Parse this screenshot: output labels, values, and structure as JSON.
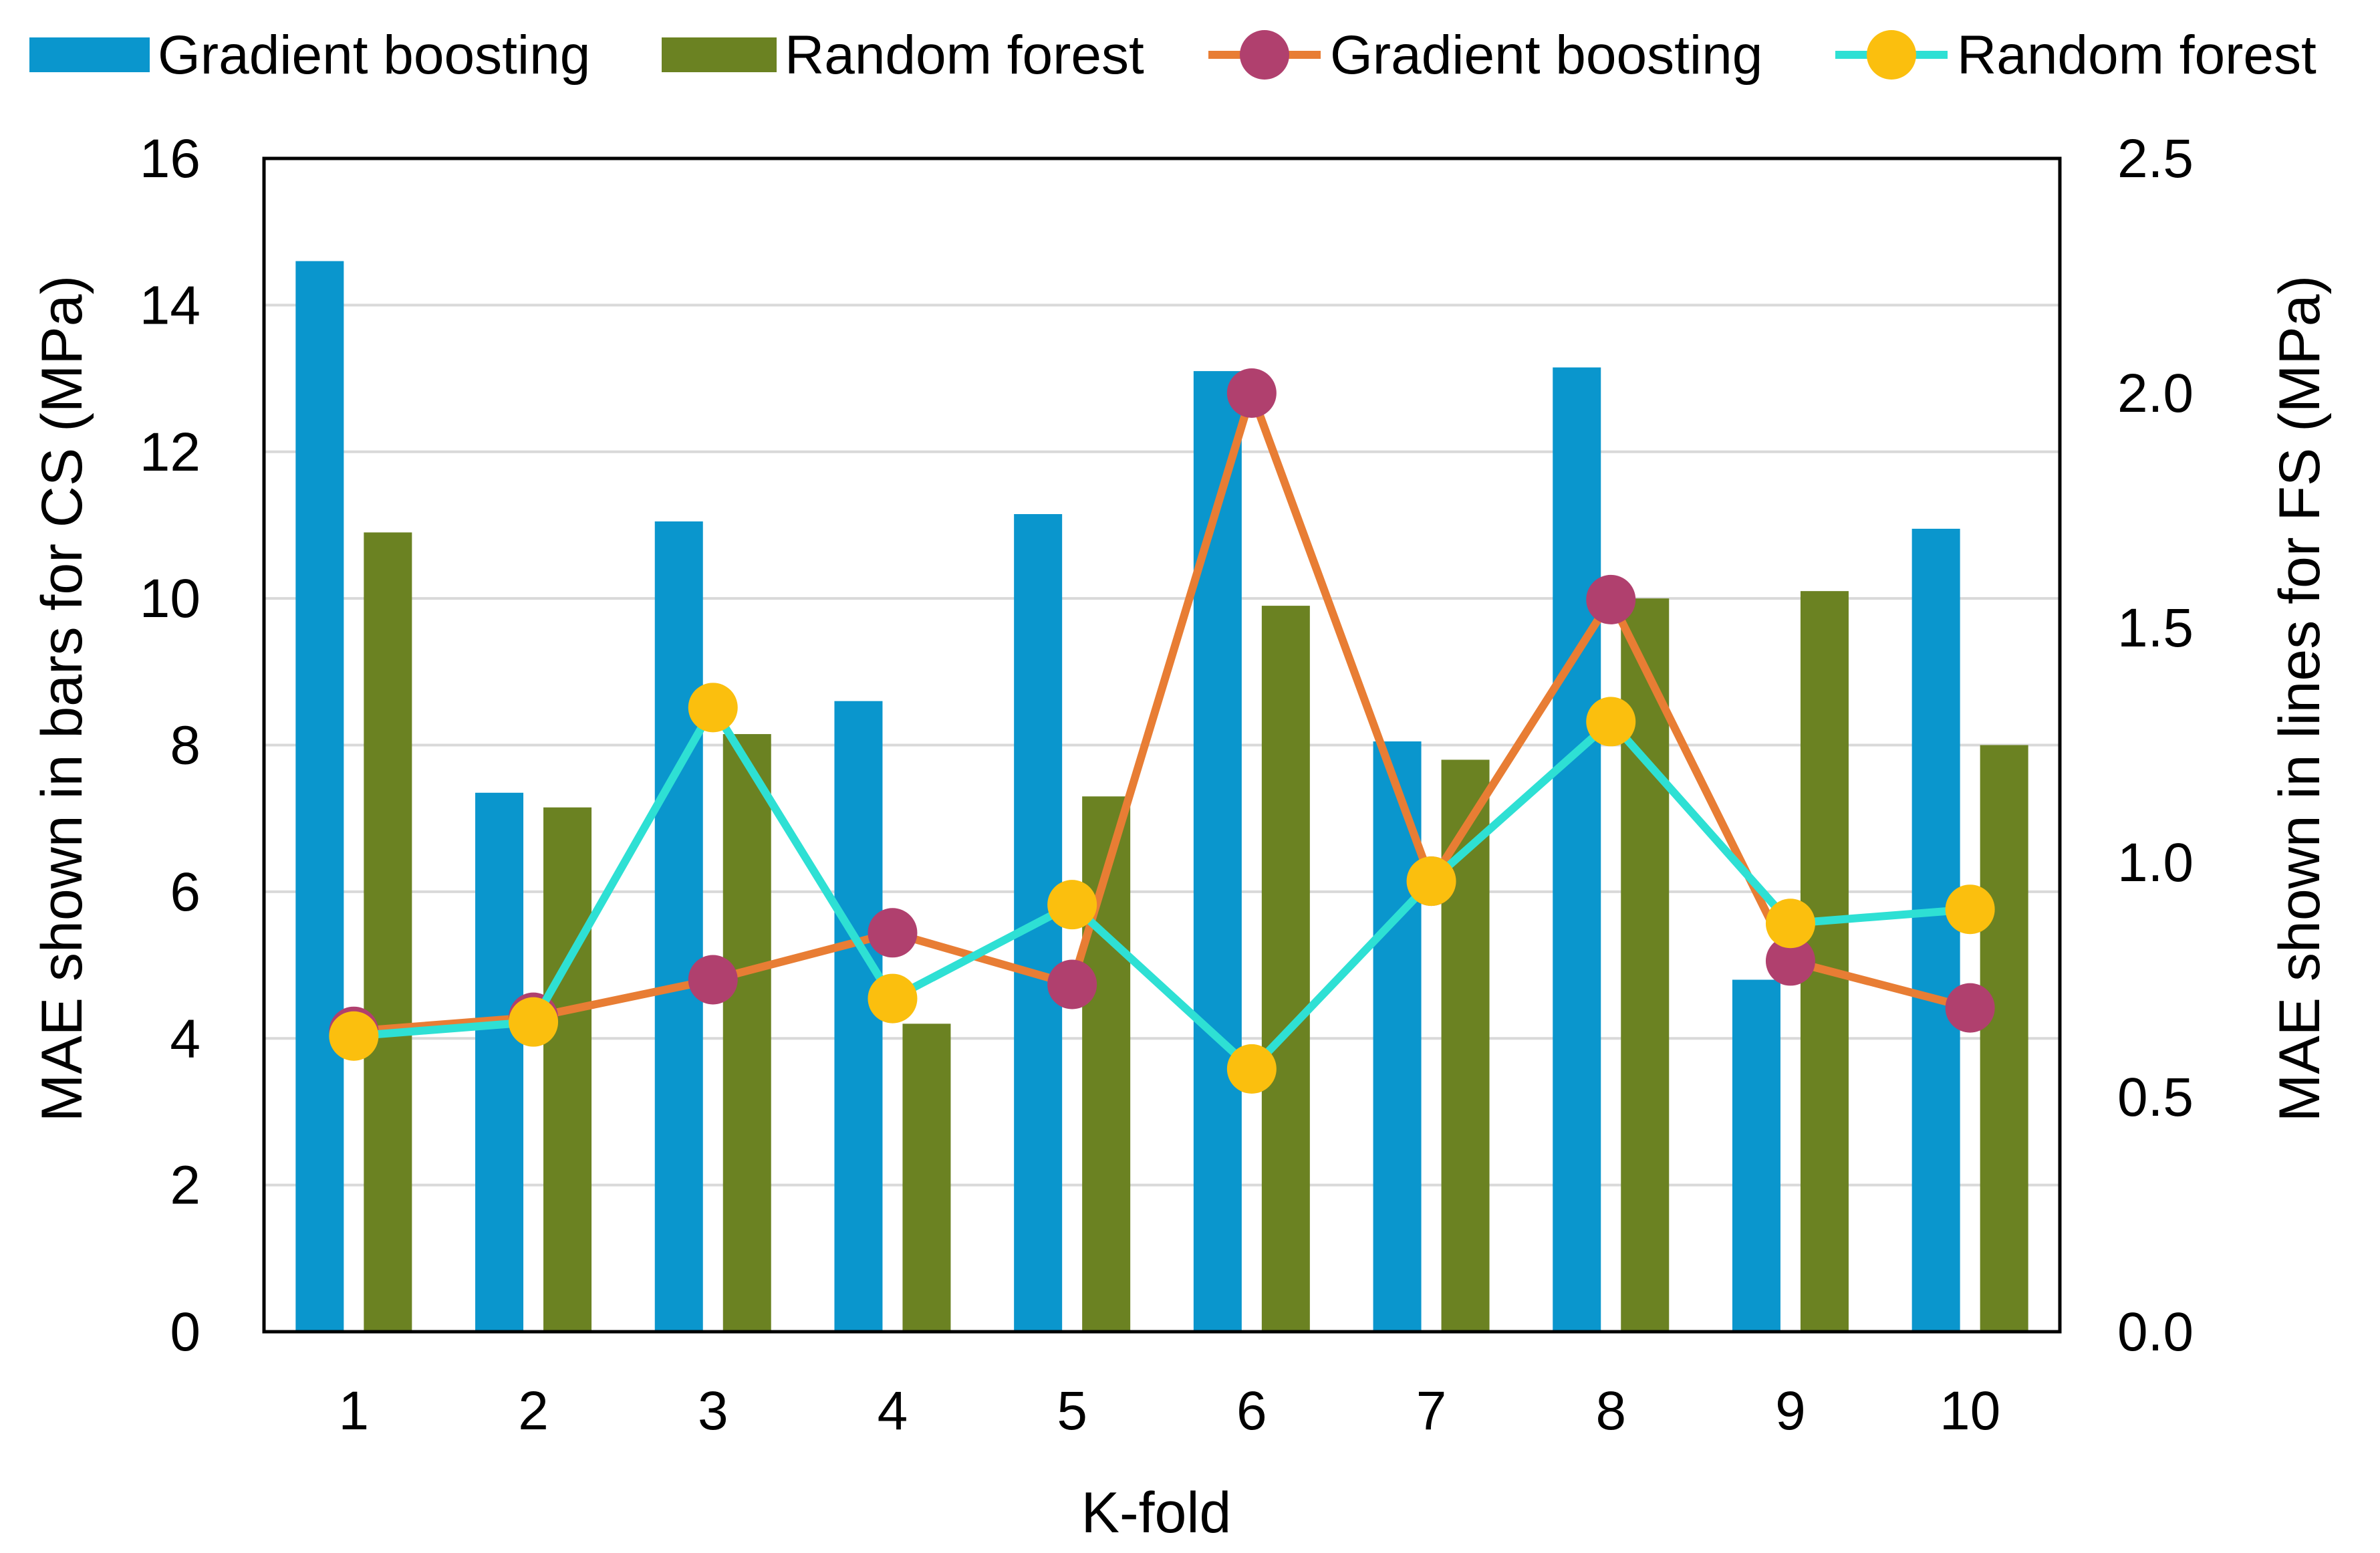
{
  "chart_data": {
    "type": "bar",
    "categories": [
      "1",
      "2",
      "3",
      "4",
      "5",
      "6",
      "7",
      "8",
      "9",
      "10"
    ],
    "xlabel": "K-fold",
    "ylabel_left": "MAE shown in bars for CS (MPa)",
    "ylabel_right": "MAE shown in lines for FS (MPa)",
    "ylim_left": [
      0,
      16
    ],
    "ylim_right": [
      0,
      2.5
    ],
    "left_ticks": [
      "0",
      "2",
      "4",
      "6",
      "8",
      "10",
      "12",
      "14",
      "16"
    ],
    "right_ticks": [
      "0.0",
      "0.5",
      "1.0",
      "1.5",
      "2.0",
      "2.5"
    ],
    "grid": true,
    "legend_position": "top",
    "bar_series": [
      {
        "name": "Gradient boosting",
        "color": "#0A96CD",
        "values": [
          14.6,
          7.35,
          11.05,
          8.6,
          11.15,
          13.1,
          8.05,
          13.15,
          4.8,
          10.95
        ]
      },
      {
        "name": "Random forest",
        "color": "#6B8222",
        "values": [
          10.9,
          7.15,
          8.15,
          4.2,
          7.3,
          9.9,
          7.8,
          10.0,
          10.1,
          8.0
        ]
      }
    ],
    "line_series": [
      {
        "name": "Gradient boosting",
        "line_color": "#E87D34",
        "marker_color": "#B0406E",
        "values": [
          0.64,
          0.67,
          0.75,
          0.85,
          0.74,
          2.0,
          0.96,
          1.56,
          0.79,
          0.69
        ]
      },
      {
        "name": "Random forest",
        "line_color": "#2EE0D4",
        "marker_color": "#FBBF0E",
        "values": [
          0.63,
          0.66,
          1.33,
          0.71,
          0.91,
          0.56,
          0.96,
          1.3,
          0.87,
          0.9
        ]
      }
    ]
  }
}
